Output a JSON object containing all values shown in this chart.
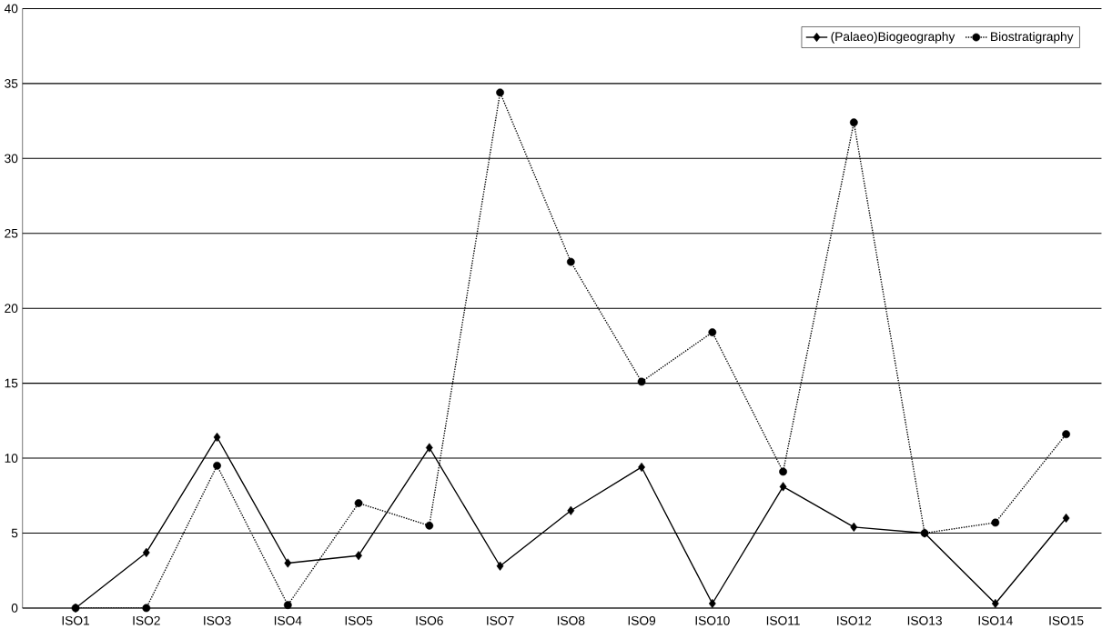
{
  "chart_data": {
    "type": "line",
    "categories": [
      "ISO1",
      "ISO2",
      "ISO3",
      "ISO4",
      "ISO5",
      "ISO6",
      "ISO7",
      "ISO8",
      "ISO9",
      "ISO10",
      "ISO11",
      "ISO12",
      "ISO13",
      "ISO14",
      "ISO15"
    ],
    "series": [
      {
        "name": "(Palaeo)Biogeography",
        "color": "#000000",
        "marker": "diamond",
        "line_style": "solid",
        "values": [
          0,
          3.7,
          11.4,
          3.0,
          3.5,
          10.7,
          2.8,
          6.5,
          9.4,
          0.3,
          8.1,
          5.4,
          5.0,
          0.3,
          6.0
        ]
      },
      {
        "name": "Biostratigraphy",
        "color": "#000000",
        "marker": "circle",
        "line_style": "dotted",
        "values": [
          0,
          0,
          9.5,
          0.2,
          7.0,
          5.5,
          34.4,
          23.1,
          15.1,
          18.4,
          9.1,
          32.4,
          5.0,
          5.7,
          11.6
        ]
      }
    ],
    "ylim": [
      0,
      40
    ],
    "yticks": [
      0,
      5,
      10,
      15,
      20,
      25,
      30,
      35,
      40
    ],
    "grid": "y",
    "legend": "top right"
  }
}
